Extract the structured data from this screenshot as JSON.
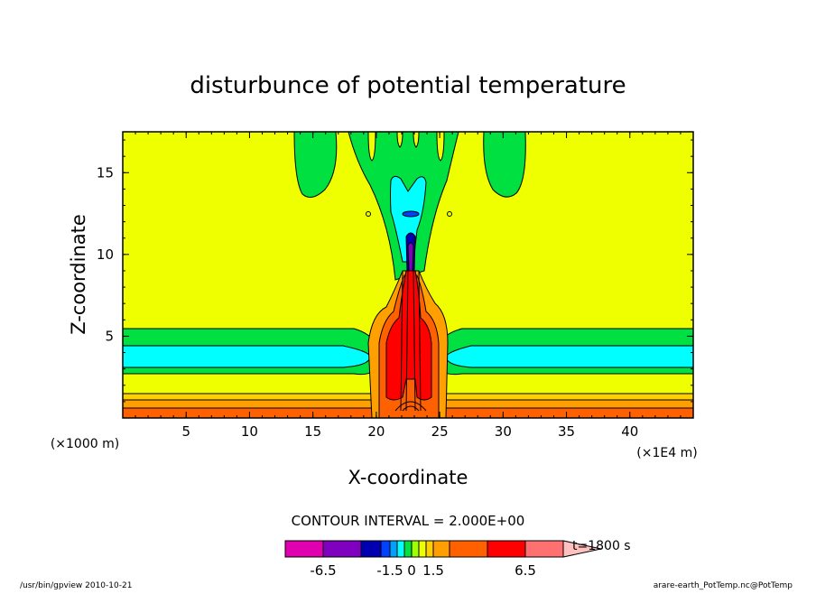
{
  "chart_data": {
    "type": "heatmap",
    "title": "disturbunce of potential temperature",
    "xlabel": "X-coordinate",
    "ylabel": "Z-coordinate",
    "x_unit": "(×1000 m)",
    "y_unit": "(×1E4 m)",
    "xlim": [
      0,
      45
    ],
    "ylim": [
      0,
      17.5
    ],
    "x_ticks": [
      5,
      10,
      15,
      20,
      25,
      30,
      35,
      40
    ],
    "y_ticks": [
      5,
      10,
      15
    ],
    "contour_interval_label": "CONTOUR INTERVAL = 2.000E+00",
    "time_label": "t=1800 s",
    "colorbar": {
      "tick_labels": [
        "-6.5",
        "-1.5",
        "0",
        "1.5",
        "6.5"
      ],
      "tick_values": [
        -6.5,
        -1.5,
        0,
        1.5,
        6.5
      ],
      "bins": [
        {
          "lo": -8.5,
          "hi": -6.5,
          "color": "#e000b0"
        },
        {
          "lo": -6.5,
          "hi": -4.5,
          "color": "#8000c0"
        },
        {
          "lo": -4.5,
          "hi": -2.5,
          "color": "#0000b0"
        },
        {
          "lo": -2.5,
          "hi": -1.5,
          "color": "#0040ff"
        },
        {
          "lo": -1.5,
          "hi": -1.0,
          "color": "#00a0ff"
        },
        {
          "lo": -1.0,
          "hi": -0.5,
          "color": "#00ffff"
        },
        {
          "lo": -0.5,
          "hi": 0.0,
          "color": "#00e040"
        },
        {
          "lo": 0.0,
          "hi": 0.5,
          "color": "#a0ff00"
        },
        {
          "lo": 0.5,
          "hi": 1.0,
          "color": "#f0ff00"
        },
        {
          "lo": 1.0,
          "hi": 1.5,
          "color": "#ffd000"
        },
        {
          "lo": 1.5,
          "hi": 2.5,
          "color": "#ffa000"
        },
        {
          "lo": 2.5,
          "hi": 4.5,
          "color": "#ff6000"
        },
        {
          "lo": 4.5,
          "hi": 6.5,
          "color": "#ff0000"
        },
        {
          "lo": 6.5,
          "hi": 8.5,
          "color": "#ff7070"
        },
        {
          "lo": 8.5,
          "hi": null,
          "color": "#ffc0c0"
        }
      ]
    },
    "field_regions": [
      {
        "name": "background",
        "value_range": [
          0.5,
          1.0
        ],
        "color": "#f0ff00"
      },
      {
        "name": "low-level-warm-layers",
        "x_range": [
          0,
          45
        ],
        "z_range": [
          0,
          1.5
        ],
        "color": "#ffa000"
      },
      {
        "name": "cold-band-left",
        "x_range": [
          0,
          19
        ],
        "z_range": [
          2.8,
          5.7
        ],
        "color": "#00ffff"
      },
      {
        "name": "cold-band-right",
        "x_range": [
          26,
          45
        ],
        "z_range": [
          2.8,
          5.7
        ],
        "color": "#00ffff"
      },
      {
        "name": "upper-green-plume",
        "x_range": [
          20,
          25.5
        ],
        "z_range": [
          8,
          17.5
        ],
        "color": "#00e040"
      },
      {
        "name": "upper-green-left",
        "x_range": [
          13.5,
          16.8
        ],
        "z_range": [
          13.5,
          17.5
        ],
        "color": "#00e040"
      },
      {
        "name": "upper-green-right",
        "x_range": [
          28.5,
          31.6
        ],
        "z_range": [
          13.5,
          17.5
        ],
        "color": "#00e040"
      },
      {
        "name": "cold-core",
        "x_range": [
          21.3,
          24
        ],
        "z_range": [
          10,
          15.5
        ],
        "color": "#00ffff"
      },
      {
        "name": "warm-column",
        "x_range": [
          19.5,
          25.5
        ],
        "z_range": [
          0,
          7
        ],
        "color": "#ff0000"
      }
    ]
  },
  "footer": {
    "left": "/usr/bin/gpview   2010-10-21",
    "right": "arare-earth_PotTemp.nc@PotTemp"
  },
  "colors": {
    "background_field": "#f0ff00",
    "frame": "#000000"
  }
}
